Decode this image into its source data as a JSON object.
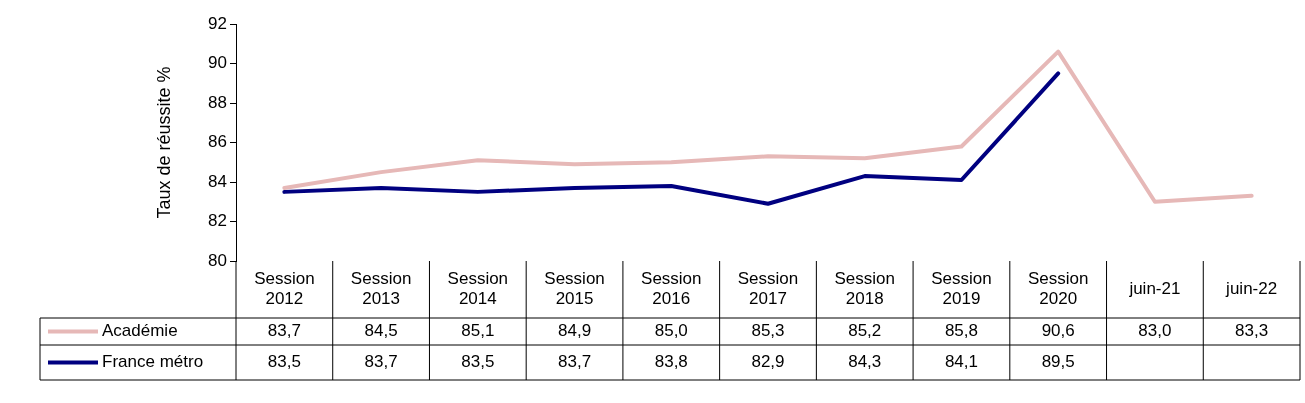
{
  "chart_data": {
    "type": "line",
    "ylabel": "Taux de réussite %",
    "categories": [
      "Session 2012",
      "Session 2013",
      "Session 2014",
      "Session 2015",
      "Session 2016",
      "Session 2017",
      "Session 2018",
      "Session 2019",
      "Session 2020",
      "juin-21",
      "juin-22"
    ],
    "series": [
      {
        "name": "Académie",
        "color": "#e6b8b7",
        "values": [
          83.7,
          84.5,
          85.1,
          84.9,
          85.0,
          85.3,
          85.2,
          85.8,
          90.6,
          83.0,
          83.3
        ],
        "value_labels": [
          "83,7",
          "84,5",
          "85,1",
          "84,9",
          "85,0",
          "85,3",
          "85,2",
          "85,8",
          "90,6",
          "83,0",
          "83,3"
        ]
      },
      {
        "name": "France métro",
        "color": "#000080",
        "values": [
          83.5,
          83.7,
          83.5,
          83.7,
          83.8,
          82.9,
          84.3,
          84.1,
          89.5,
          null,
          null
        ],
        "value_labels": [
          "83,5",
          "83,7",
          "83,5",
          "83,7",
          "83,8",
          "82,9",
          "84,3",
          "84,1",
          "89,5",
          null,
          null
        ]
      }
    ],
    "ylim": [
      80,
      92
    ],
    "yticks": [
      80,
      82,
      84,
      86,
      88,
      90,
      92
    ],
    "grid": false,
    "marker": "none",
    "line_style": "solid",
    "legend": "bottom left"
  }
}
